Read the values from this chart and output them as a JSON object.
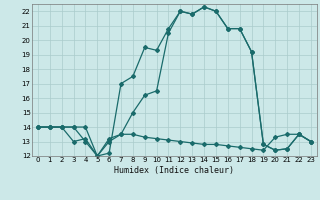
{
  "xlabel": "Humidex (Indice chaleur)",
  "background_color": "#cce8e8",
  "grid_color": "#aacccc",
  "line_color": "#1a6b6b",
  "xlim": [
    -0.5,
    23.5
  ],
  "ylim": [
    12,
    22.5
  ],
  "xticks": [
    0,
    1,
    2,
    3,
    4,
    5,
    6,
    7,
    8,
    9,
    10,
    11,
    12,
    13,
    14,
    15,
    16,
    17,
    18,
    19,
    20,
    21,
    22,
    23
  ],
  "yticks": [
    12,
    13,
    14,
    15,
    16,
    17,
    18,
    19,
    20,
    21,
    22
  ],
  "x": [
    0,
    1,
    2,
    3,
    4,
    5,
    6,
    7,
    8,
    9,
    10,
    11,
    12,
    13,
    14,
    15,
    16,
    17,
    18,
    19,
    20,
    21,
    22,
    23
  ],
  "line_upper": [
    14.0,
    14.0,
    14.0,
    14.0,
    14.0,
    12.0,
    12.2,
    17.0,
    17.5,
    19.5,
    19.3,
    20.8,
    22.0,
    21.8,
    22.3,
    22.0,
    20.8,
    20.8,
    19.2,
    12.8,
    12.4,
    12.5,
    13.5,
    13.0
  ],
  "line_mid": [
    14.0,
    14.0,
    14.0,
    13.0,
    13.2,
    12.0,
    13.2,
    13.5,
    15.0,
    16.2,
    16.5,
    20.5,
    22.0,
    21.8,
    22.3,
    22.0,
    20.8,
    20.8,
    19.2,
    12.8,
    12.4,
    12.5,
    13.5,
    13.0
  ],
  "line_low": [
    14.0,
    14.0,
    14.0,
    14.0,
    13.0,
    12.0,
    13.0,
    13.5,
    13.5,
    13.3,
    13.2,
    13.1,
    13.0,
    12.9,
    12.8,
    12.8,
    12.7,
    12.6,
    12.5,
    12.4,
    13.3,
    13.5,
    13.5,
    13.0
  ],
  "marker_size": 2.0,
  "linewidth": 0.9,
  "tick_fontsize": 5.0,
  "xlabel_fontsize": 6.0
}
